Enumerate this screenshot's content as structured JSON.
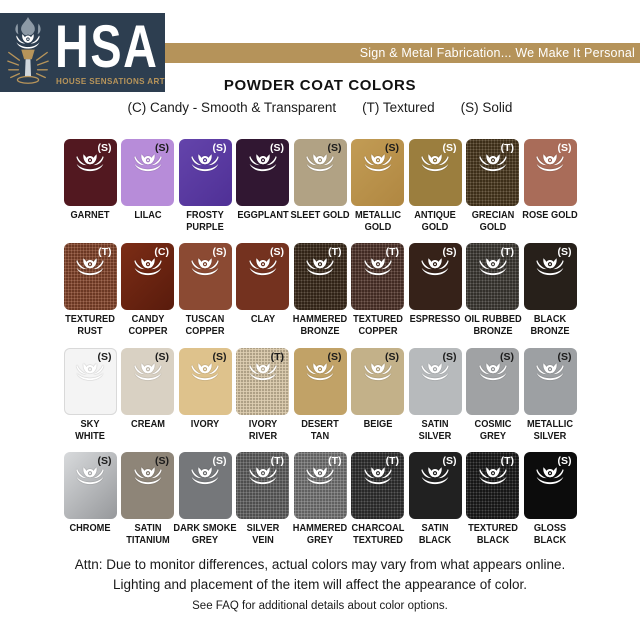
{
  "logo": {
    "acronym": "HSA",
    "tagline": "HOUSE SENSATIONS ART",
    "icon": "lotus-torch-icon",
    "navy": "#2d3e50",
    "gold": "#b7945a"
  },
  "banner": {
    "text": "Sign & Metal Fabrication... We Make It Personal",
    "bg": "#b5935a"
  },
  "header": {
    "title": "POWDER COAT COLORS",
    "legend": [
      "(C) Candy - Smooth & Transparent",
      "(T) Textured",
      "(S) Solid"
    ]
  },
  "swatches": {
    "rows": [
      [
        {
          "name": "GARNET",
          "code": "(S)",
          "color": "#521820",
          "dark_text": false,
          "textured": false
        },
        {
          "name": "LILAC",
          "code": "(S)",
          "color": "#b78cd9",
          "dark_text": true,
          "textured": false
        },
        {
          "name": "FROSTY\nPURPLE",
          "code": "(S)",
          "color": "#6444ab",
          "color2": "#4f3096",
          "dark_text": false,
          "textured": false
        },
        {
          "name": "EGGPLANT",
          "code": "(S)",
          "color": "#311732",
          "dark_text": false,
          "textured": false
        },
        {
          "name": "SLEET GOLD",
          "code": "(S)",
          "color": "#b1a284",
          "dark_text": true,
          "textured": false
        },
        {
          "name": "METALLIC\nGOLD",
          "code": "(S)",
          "color": "#c29c55",
          "color2": "#b08741",
          "dark_text": true,
          "textured": false
        },
        {
          "name": "ANTIQUE\nGOLD",
          "code": "(S)",
          "color": "#9b7e3e",
          "dark_text": false,
          "textured": false
        },
        {
          "name": "GRECIAN\nGOLD",
          "code": "(T)",
          "color": "#49381f",
          "dark_text": false,
          "textured": true
        },
        {
          "name": "ROSE GOLD",
          "code": "(S)",
          "color": "#a96c59",
          "dark_text": false,
          "textured": false
        }
      ],
      [
        {
          "name": "TEXTURED\nRUST",
          "code": "(T)",
          "color": "#81452c",
          "dark_text": false,
          "textured": true
        },
        {
          "name": "CANDY\nCOPPER",
          "code": "(C)",
          "color": "#7c2d16",
          "color2": "#591b0c",
          "dark_text": false,
          "textured": false
        },
        {
          "name": "TUSCAN\nCOPPER",
          "code": "(S)",
          "color": "#8b4a33",
          "dark_text": false,
          "textured": false
        },
        {
          "name": "CLAY",
          "code": "(S)",
          "color": "#74321f",
          "dark_text": false,
          "textured": false
        },
        {
          "name": "HAMMERED\nBRONZE",
          "code": "(T)",
          "color": "#3a2b1c",
          "dark_text": false,
          "textured": true
        },
        {
          "name": "TEXTURED\nCOPPER",
          "code": "(T)",
          "color": "#4f342b",
          "dark_text": false,
          "textured": true
        },
        {
          "name": "ESPRESSO",
          "code": "(S)",
          "color": "#362219",
          "dark_text": false,
          "textured": false
        },
        {
          "name": "OIL RUBBED\nBRONZE",
          "code": "(T)",
          "color": "#3d3934",
          "dark_text": false,
          "textured": true
        },
        {
          "name": "BLACK\nBRONZE",
          "code": "(S)",
          "color": "#27201a",
          "dark_text": false,
          "textured": false
        }
      ],
      [
        {
          "name": "SKY\nWHITE",
          "code": "(S)",
          "color": "#f4f4f4",
          "dark_text": true,
          "textured": false,
          "border": "#d9d9d9"
        },
        {
          "name": "CREAM",
          "code": "(S)",
          "color": "#d9d1c3",
          "dark_text": true,
          "textured": false
        },
        {
          "name": "IVORY",
          "code": "(S)",
          "color": "#dec28c",
          "dark_text": true,
          "textured": false
        },
        {
          "name": "IVORY\nRIVER",
          "code": "(T)",
          "color": "#d4c3a4",
          "dark_text": true,
          "textured": true
        },
        {
          "name": "DESERT\nTAN",
          "code": "(S)",
          "color": "#c1a267",
          "dark_text": true,
          "textured": false
        },
        {
          "name": "BEIGE",
          "code": "(S)",
          "color": "#c3b189",
          "dark_text": true,
          "textured": false
        },
        {
          "name": "SATIN\nSILVER",
          "code": "(S)",
          "color": "#b7babc",
          "dark_text": true,
          "textured": false
        },
        {
          "name": "COSMIC\nGREY",
          "code": "(S)",
          "color": "#a0a2a4",
          "dark_text": true,
          "textured": false
        },
        {
          "name": "METALLIC\nSILVER",
          "code": "(S)",
          "color": "#9da0a3",
          "dark_text": true,
          "textured": false
        }
      ],
      [
        {
          "name": "CHROME",
          "code": "(S)",
          "color": "#d8dadc",
          "color2": "#96989b",
          "dark_text": true,
          "textured": false
        },
        {
          "name": "SATIN\nTITANIUM",
          "code": "(S)",
          "color": "#8e8578",
          "dark_text": true,
          "textured": false
        },
        {
          "name": "DARK SMOKE\nGREY",
          "code": "(S)",
          "color": "#75777a",
          "dark_text": false,
          "textured": false
        },
        {
          "name": "SILVER\nVEIN",
          "code": "(T)",
          "color": "#5f5f5f",
          "dark_text": false,
          "textured": true
        },
        {
          "name": "HAMMERED\nGREY",
          "code": "(T)",
          "color": "#757575",
          "dark_text": false,
          "textured": true
        },
        {
          "name": "CHARCOAL\nTEXTURED",
          "code": "(T)",
          "color": "#303030",
          "dark_text": false,
          "textured": true
        },
        {
          "name": "SATIN\nBLACK",
          "code": "(S)",
          "color": "#212121",
          "dark_text": false,
          "textured": false
        },
        {
          "name": "TEXTURED\nBLACK",
          "code": "(T)",
          "color": "#1b1b1b",
          "dark_text": false,
          "textured": true
        },
        {
          "name": "GLOSS\nBLACK",
          "code": "(S)",
          "color": "#0c0c0c",
          "dark_text": false,
          "textured": false
        }
      ]
    ]
  },
  "footer": {
    "attn_line1": "Attn: Due to monitor differences, actual colors may vary from what appears online.",
    "attn_line2": "Lighting and placement of the item will affect the appearance of color.",
    "faq": "See FAQ for additional details about color options."
  }
}
